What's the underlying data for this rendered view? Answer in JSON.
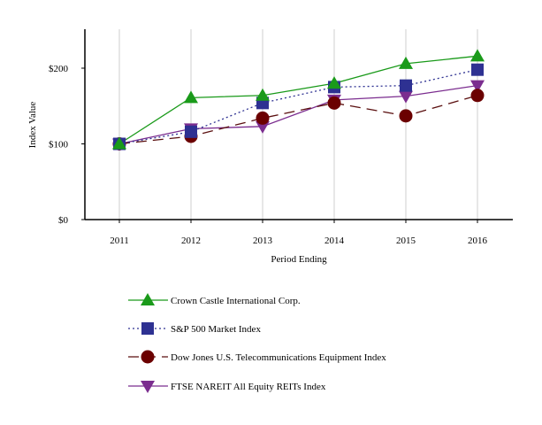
{
  "chart_data": {
    "type": "line",
    "title": "",
    "xlabel": "Period Ending",
    "ylabel": "Index Value",
    "categories": [
      "2011",
      "2012",
      "2013",
      "2014",
      "2015",
      "2016"
    ],
    "ylim": [
      0,
      250
    ],
    "yticks": [
      {
        "value": 0,
        "label": "$0"
      },
      {
        "value": 100,
        "label": "$100"
      },
      {
        "value": 200,
        "label": "$200"
      }
    ],
    "grid": "vertical",
    "legend_position": "bottom",
    "series": [
      {
        "name": "Crown Castle International Corp.",
        "color": "#1a9a1a",
        "line": "solid",
        "marker": "triangle-up",
        "marker_color": "#1a9a1a",
        "values": [
          100,
          161,
          164,
          180,
          206,
          216
        ]
      },
      {
        "name": "S&P 500 Market Index",
        "color": "#2e3192",
        "line": "dotted",
        "marker": "square",
        "marker_color": "#2e3192",
        "values": [
          100,
          116,
          154,
          175,
          177,
          198
        ]
      },
      {
        "name": "Dow Jones U.S. Telecommunications Equipment Index",
        "color": "#5a0f0f",
        "line": "dashed",
        "marker": "circle",
        "marker_color": "#6b0000",
        "values": [
          100,
          110,
          134,
          154,
          137,
          164
        ]
      },
      {
        "name": "FTSE NAREIT All Equity REITs Index",
        "color": "#7b2d8f",
        "line": "solid",
        "marker": "triangle-down",
        "marker_color": "#7b2d8f",
        "values": [
          100,
          120,
          123,
          158,
          163,
          177
        ]
      }
    ]
  }
}
